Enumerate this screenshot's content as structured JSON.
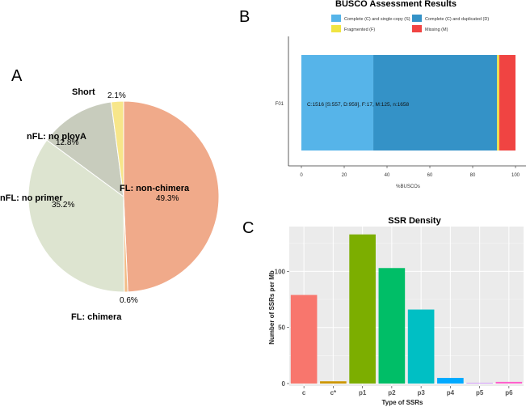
{
  "panels": {
    "a": {
      "letter": "A"
    },
    "b": {
      "letter": "B"
    },
    "c": {
      "letter": "C"
    }
  },
  "chart_data": [
    {
      "panel": "A",
      "type": "pie",
      "title": "",
      "slices": [
        {
          "label": "FL: non-chimera",
          "value": 49.3,
          "pct_label": "49.3%",
          "color": "#f0aa8a"
        },
        {
          "label": "FL: chimera",
          "value": 0.6,
          "pct_label": "0.6%",
          "color": "#f2bd88"
        },
        {
          "label": "nFL: no primer",
          "value": 35.2,
          "pct_label": "35.2%",
          "color": "#dde4d0"
        },
        {
          "label": "nFL: no ployA",
          "value": 12.8,
          "pct_label": "12.8%",
          "color": "#c8ccbd"
        },
        {
          "label": "Short",
          "value": 2.1,
          "pct_label": "2.1%",
          "color": "#f7e68a"
        }
      ]
    },
    {
      "panel": "B",
      "type": "bar",
      "orientation": "horizontal-stacked",
      "title": "BUSCO Assessment Results",
      "xlabel": "%BUSCOs",
      "ylabel": "",
      "categories": [
        "F01"
      ],
      "xlim": [
        0,
        100
      ],
      "xticks": [
        0,
        20,
        40,
        60,
        80,
        100
      ],
      "series": [
        {
          "name": "Complete (C) and single-copy (S)",
          "values": [
            33.6
          ],
          "color": "#56b4e9"
        },
        {
          "name": "Complete (C) and duplicated (D)",
          "values": [
            57.8
          ],
          "color": "#3492c7"
        },
        {
          "name": "Fragmented (F)",
          "values": [
            1.0
          ],
          "color": "#f0e442"
        },
        {
          "name": "Missing (M)",
          "values": [
            7.6
          ],
          "color": "#f04442"
        }
      ],
      "bar_annotation": "C:1516 [S:557, D:959], F:17, M:125, n:1658"
    },
    {
      "panel": "C",
      "type": "bar",
      "title": "SSR Density",
      "xlabel": "Type of SSRs",
      "ylabel": "Number of SSRs per Mb",
      "categories": [
        "c",
        "c*",
        "p1",
        "p2",
        "p3",
        "p4",
        "p5",
        "p6"
      ],
      "values": [
        79,
        2,
        133,
        103,
        66,
        5,
        0.5,
        1.5
      ],
      "colors": [
        "#f8766d",
        "#cd9600",
        "#7cae00",
        "#00be67",
        "#00bfc4",
        "#00a9ff",
        "#c77cff",
        "#ff61cc"
      ],
      "ylim": [
        0,
        140
      ],
      "yticks": [
        0,
        50,
        100
      ],
      "grid": true
    }
  ]
}
